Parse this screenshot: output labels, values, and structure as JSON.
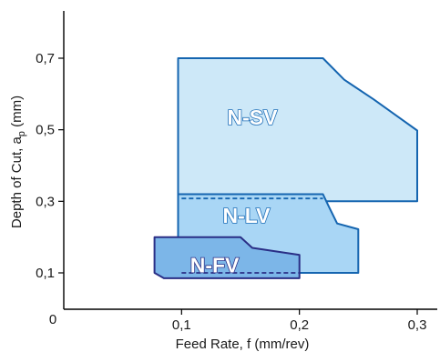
{
  "chart_data": {
    "type": "area",
    "title": "",
    "xlabel": "Feed Rate, f (mm/rev)",
    "ylabel_prefix": "Depth of Cut,  a",
    "ylabel_sub": "p",
    "ylabel_suffix": " (mm)",
    "xlim": [
      0,
      0.35
    ],
    "ylim": [
      0,
      0.8
    ],
    "origin_label": "0",
    "xticks": [
      {
        "value": 0.1,
        "label": "0,1"
      },
      {
        "value": 0.2,
        "label": "0,2"
      },
      {
        "value": 0.3,
        "label": "0,3"
      }
    ],
    "yticks": [
      {
        "value": 0.1,
        "label": "0,1"
      },
      {
        "value": 0.3,
        "label": "0,3"
      },
      {
        "value": 0.5,
        "label": "0,5"
      },
      {
        "value": 0.7,
        "label": "0,7"
      }
    ],
    "regions": [
      {
        "name": "N-SV",
        "fill": "#cde8f8",
        "stroke": "#1565b0",
        "text_stroke": "#1f6fb8",
        "label_at": [
          0.16,
          0.53
        ],
        "outline": [
          [
            0.097,
            0.7
          ],
          [
            0.22,
            0.7
          ],
          [
            0.238,
            0.64
          ],
          [
            0.263,
            0.585
          ],
          [
            0.3,
            0.498
          ],
          [
            0.3,
            0.3
          ],
          [
            0.22,
            0.3
          ],
          [
            0.097,
            0.3
          ]
        ],
        "dashed": null
      },
      {
        "name": "N-LV",
        "fill": "#a9d6f5",
        "stroke": "#1565b0",
        "text_stroke": "#1f6fb8",
        "label_at": [
          0.155,
          0.255
        ],
        "outline": [
          [
            0.097,
            0.32
          ],
          [
            0.22,
            0.32
          ],
          [
            0.225,
            0.285
          ],
          [
            0.232,
            0.238
          ],
          [
            0.25,
            0.222
          ],
          [
            0.25,
            0.1
          ],
          [
            0.097,
            0.1
          ]
        ],
        "dashed": [
          [
            0.1,
            0.308
          ],
          [
            0.22,
            0.308
          ]
        ]
      },
      {
        "name": "N-FV",
        "fill": "#7cb6e8",
        "stroke": "#2a2f86",
        "text_stroke": "#2a2f86",
        "label_at": [
          0.128,
          0.117
        ],
        "outline": [
          [
            0.077,
            0.2
          ],
          [
            0.15,
            0.2
          ],
          [
            0.16,
            0.17
          ],
          [
            0.2,
            0.15
          ],
          [
            0.2,
            0.085
          ],
          [
            0.085,
            0.085
          ],
          [
            0.077,
            0.1
          ]
        ],
        "dashed": [
          [
            0.1,
            0.1
          ],
          [
            0.2,
            0.1
          ]
        ]
      }
    ],
    "grid": false,
    "legend": "none"
  }
}
